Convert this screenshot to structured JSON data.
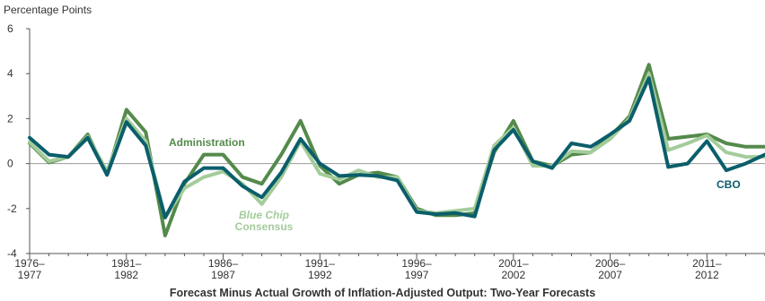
{
  "chart_data": {
    "type": "line",
    "title": "Forecast Minus Actual Growth of Inflation-Adjusted Output: Two-Year Forecasts",
    "ylabel": "Percentage Points",
    "xlabel": "",
    "ylim": [
      -4,
      6
    ],
    "yticks": [
      "6",
      "4",
      "2",
      "0",
      "-2",
      "-4"
    ],
    "xlim": [
      1976,
      2014
    ],
    "xtick_labels": [
      {
        "top": "1976–",
        "bottom": "1977"
      },
      {
        "top": "1981–",
        "bottom": "1982"
      },
      {
        "top": "1986–",
        "bottom": "1987"
      },
      {
        "top": "1991–",
        "bottom": "1992"
      },
      {
        "top": "1996–",
        "bottom": "1997"
      },
      {
        "top": "2001–",
        "bottom": "2002"
      },
      {
        "top": "2006–",
        "bottom": "2007"
      },
      {
        "top": "2011–",
        "bottom": "2012"
      }
    ],
    "x": [
      1976,
      1977,
      1978,
      1979,
      1980,
      1981,
      1982,
      1983,
      1984,
      1985,
      1986,
      1987,
      1988,
      1989,
      1990,
      1991,
      1992,
      1993,
      1994,
      1995,
      1996,
      1997,
      1998,
      1999,
      2000,
      2001,
      2002,
      2003,
      2004,
      2005,
      2006,
      2007,
      2008,
      2009,
      2010,
      2011,
      2012,
      2013,
      2014
    ],
    "grid": false,
    "legend": "none",
    "series": [
      {
        "name": "Administration",
        "color": "#548a4b",
        "values": [
          0.9,
          0.05,
          0.3,
          1.3,
          -0.5,
          2.4,
          1.4,
          -3.2,
          -0.9,
          0.4,
          0.4,
          -0.6,
          -0.9,
          0.4,
          1.9,
          -0.1,
          -0.9,
          -0.5,
          -0.4,
          -0.6,
          -2.0,
          -2.3,
          -2.3,
          -2.2,
          0.5,
          1.9,
          0.1,
          -0.1,
          0.4,
          0.5,
          1.2,
          2.1,
          4.4,
          1.1,
          1.2,
          1.3,
          0.9,
          0.75,
          0.75
        ]
      },
      {
        "name": "Blue Chip Consensus",
        "color": "#a3cc9a",
        "values": [
          0.95,
          0.1,
          0.3,
          1.2,
          -0.35,
          2.0,
          1.0,
          -2.4,
          -1.1,
          -0.6,
          -0.35,
          -0.9,
          -1.8,
          -0.6,
          1.0,
          -0.45,
          -0.7,
          -0.3,
          -0.6,
          -0.6,
          -2.1,
          -2.2,
          -2.1,
          -2.0,
          0.8,
          1.6,
          -0.1,
          -0.1,
          0.55,
          0.5,
          1.1,
          2.0,
          4.0,
          0.6,
          0.9,
          1.25,
          0.5,
          0.3,
          0.3
        ]
      },
      {
        "name": "CBO",
        "color": "#0b5e6b",
        "values": [
          1.15,
          0.4,
          0.3,
          1.15,
          -0.5,
          1.85,
          0.8,
          -2.4,
          -0.8,
          -0.2,
          -0.2,
          -1.0,
          -1.5,
          -0.4,
          1.1,
          0.0,
          -0.55,
          -0.5,
          -0.55,
          -0.75,
          -2.15,
          -2.25,
          -2.2,
          -2.35,
          0.6,
          1.5,
          0.1,
          -0.2,
          0.9,
          0.75,
          1.3,
          1.9,
          3.8,
          -0.15,
          0.0,
          1.0,
          -0.3,
          0.0,
          0.4
        ]
      }
    ],
    "annotations": [
      {
        "series": "Administration",
        "lines": [
          "Administration"
        ]
      },
      {
        "series": "Blue Chip Consensus",
        "lines": [
          "Blue Chip",
          "Consensus"
        ]
      },
      {
        "series": "CBO",
        "lines": [
          "CBO"
        ]
      }
    ]
  }
}
